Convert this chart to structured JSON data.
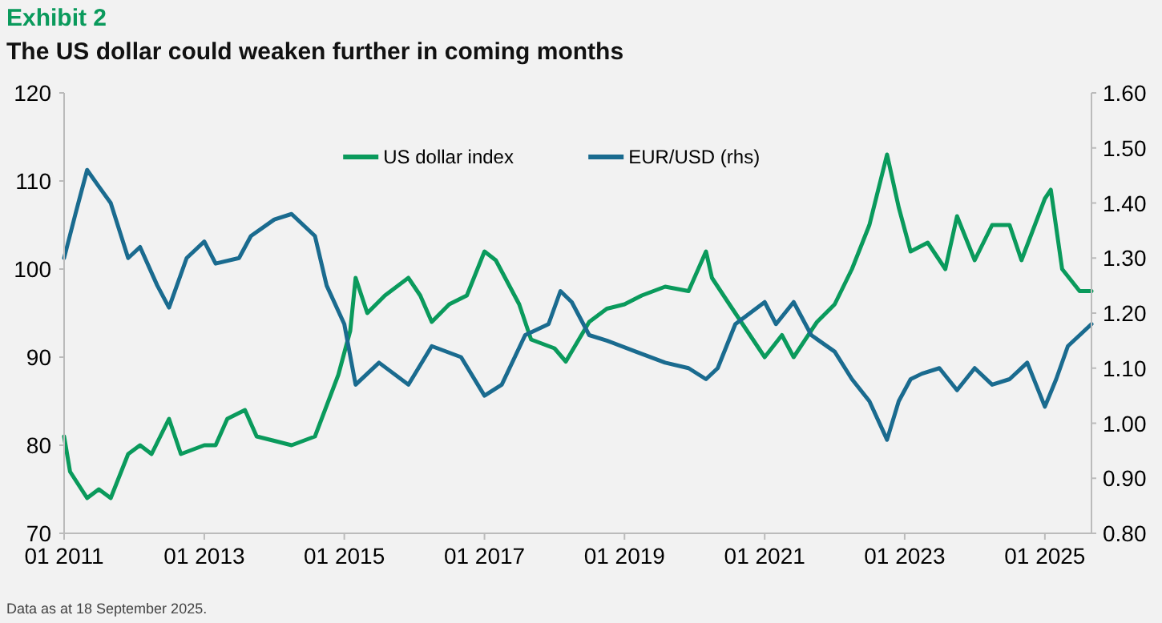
{
  "chart_data": {
    "type": "line",
    "title": "Exhibit 2",
    "subtitle": "The US dollar could weaken further in coming months",
    "annotations": [
      "Data as at 18 September 2025."
    ],
    "x": [
      "2011-01",
      "2011-02",
      "2011-05",
      "2011-07",
      "2011-09",
      "2011-12",
      "2012-02",
      "2012-04",
      "2012-07",
      "2012-09",
      "2013-01",
      "2013-03",
      "2013-05",
      "2013-08",
      "2013-10",
      "2014-01",
      "2014-04",
      "2014-08",
      "2014-12",
      "2015-02",
      "2015-03",
      "2015-05",
      "2015-08",
      "2015-12",
      "2016-02",
      "2016-04",
      "2016-07",
      "2016-10",
      "2017-01",
      "2017-03",
      "2017-07",
      "2017-09",
      "2018-01",
      "2018-03",
      "2018-07",
      "2018-10",
      "2019-01",
      "2019-04",
      "2019-08",
      "2019-12",
      "2020-03",
      "2020-04",
      "2020-07",
      "2020-10",
      "2021-01",
      "2021-04",
      "2021-06",
      "2021-10",
      "2022-01",
      "2022-04",
      "2022-07",
      "2022-10",
      "2022-12",
      "2023-02",
      "2023-05",
      "2023-08",
      "2023-10",
      "2024-01",
      "2024-04",
      "2024-07",
      "2024-09",
      "2025-01",
      "2025-02",
      "2025-04",
      "2025-07",
      "2025-09"
    ],
    "series": [
      {
        "name": "US dollar index",
        "color": "#0a9a5c",
        "values": [
          81,
          77,
          74,
          75,
          74,
          79,
          80,
          79,
          83,
          79,
          80,
          80,
          83,
          84,
          81,
          80.5,
          80,
          81,
          88,
          93,
          99,
          95,
          97,
          99,
          97,
          94,
          96,
          97,
          102,
          101,
          96,
          92,
          91,
          89.5,
          94,
          95.5,
          96,
          97,
          98,
          97.5,
          102,
          99,
          96,
          93,
          90,
          92.5,
          90,
          94,
          96,
          100,
          105,
          113,
          107,
          102,
          103,
          100,
          106,
          101,
          105,
          105,
          101,
          108,
          109,
          100,
          97.5,
          97.5
        ]
      },
      {
        "name": "EUR/USD (rhs)",
        "color": "#1a6b8f",
        "axis": "y2",
        "x": [
          "2011-01",
          "2011-03",
          "2011-05",
          "2011-07",
          "2011-09",
          "2011-12",
          "2012-02",
          "2012-05",
          "2012-07",
          "2012-10",
          "2013-01",
          "2013-03",
          "2013-07",
          "2013-09",
          "2014-01",
          "2014-04",
          "2014-08",
          "2014-10",
          "2015-01",
          "2015-03",
          "2015-07",
          "2015-12",
          "2016-04",
          "2016-09",
          "2017-01",
          "2017-04",
          "2017-08",
          "2017-12",
          "2018-02",
          "2018-04",
          "2018-07",
          "2018-10",
          "2019-03",
          "2019-08",
          "2019-12",
          "2020-03",
          "2020-05",
          "2020-08",
          "2021-01",
          "2021-03",
          "2021-06",
          "2021-09",
          "2022-01",
          "2022-04",
          "2022-07",
          "2022-10",
          "2022-12",
          "2023-02",
          "2023-04",
          "2023-07",
          "2023-10",
          "2024-01",
          "2024-04",
          "2024-07",
          "2024-10",
          "2025-01",
          "2025-03",
          "2025-05",
          "2025-09"
        ],
        "values": [
          1.3,
          1.38,
          1.46,
          1.43,
          1.4,
          1.3,
          1.32,
          1.25,
          1.21,
          1.3,
          1.33,
          1.29,
          1.3,
          1.34,
          1.37,
          1.38,
          1.34,
          1.25,
          1.18,
          1.07,
          1.11,
          1.07,
          1.14,
          1.12,
          1.05,
          1.07,
          1.16,
          1.18,
          1.24,
          1.22,
          1.16,
          1.15,
          1.13,
          1.11,
          1.1,
          1.08,
          1.1,
          1.18,
          1.22,
          1.18,
          1.22,
          1.16,
          1.13,
          1.08,
          1.04,
          0.97,
          1.04,
          1.08,
          1.09,
          1.1,
          1.06,
          1.1,
          1.07,
          1.08,
          1.11,
          1.03,
          1.08,
          1.14,
          1.18
        ]
      }
    ],
    "xlim": [
      "2011-01",
      "2025-09"
    ],
    "xticks": [
      {
        "value": "2011-01",
        "label": "01 2011"
      },
      {
        "value": "2013-01",
        "label": "01 2013"
      },
      {
        "value": "2015-01",
        "label": "01 2015"
      },
      {
        "value": "2017-01",
        "label": "01 2017"
      },
      {
        "value": "2019-01",
        "label": "01 2019"
      },
      {
        "value": "2021-01",
        "label": "01 2021"
      },
      {
        "value": "2023-01",
        "label": "01 2023"
      },
      {
        "value": "2025-01",
        "label": "01 2025"
      }
    ],
    "ylim": [
      70,
      120
    ],
    "yticks": [
      70,
      80,
      90,
      100,
      110,
      120
    ],
    "y2lim": [
      0.8,
      1.6
    ],
    "y2ticks": [
      {
        "value": 0.8,
        "label": "0.80"
      },
      {
        "value": 0.9,
        "label": "0.90"
      },
      {
        "value": 1.0,
        "label": "1.00"
      },
      {
        "value": 1.1,
        "label": "1.10"
      },
      {
        "value": 1.2,
        "label": "1.20"
      },
      {
        "value": 1.3,
        "label": "1.30"
      },
      {
        "value": 1.4,
        "label": "1.40"
      },
      {
        "value": 1.5,
        "label": "1.50"
      },
      {
        "value": 1.6,
        "label": "1.60"
      }
    ],
    "grid": false,
    "legend": "top",
    "marker": "none",
    "line_style": "solid"
  }
}
